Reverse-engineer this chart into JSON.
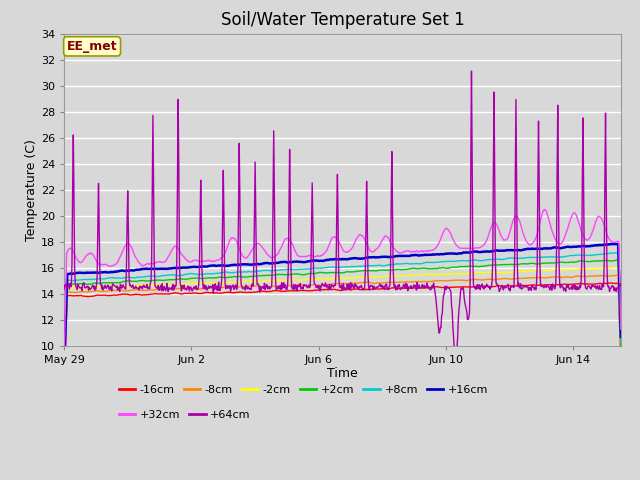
{
  "title": "Soil/Water Temperature Set 1",
  "xlabel": "Time",
  "ylabel": "Temperature (C)",
  "ylim": [
    10,
    34
  ],
  "yticks": [
    10,
    12,
    14,
    16,
    18,
    20,
    22,
    24,
    26,
    28,
    30,
    32,
    34
  ],
  "background_color": "#d8d8d8",
  "plot_bg_color": "#d8d8d8",
  "grid_color": "#ffffff",
  "annotation_text": "EE_met",
  "annotation_bg": "#ffffcc",
  "annotation_border": "#999900",
  "series_order": [
    "-16cm",
    "-8cm",
    "-2cm",
    "+2cm",
    "+8cm",
    "+16cm",
    "+32cm",
    "+64cm"
  ],
  "series": {
    "-16cm": {
      "color": "#ff0000",
      "base": 13.8,
      "trend": 1.0
    },
    "-8cm": {
      "color": "#ff8800",
      "base": 14.1,
      "trend": 1.3
    },
    "-2cm": {
      "color": "#ffff00",
      "base": 14.4,
      "trend": 1.6
    },
    "+2cm": {
      "color": "#00cc00",
      "base": 14.7,
      "trend": 1.9
    },
    "+8cm": {
      "color": "#00cccc",
      "base": 15.0,
      "trend": 2.1
    },
    "+16cm": {
      "color": "#0000cc",
      "base": 15.5,
      "trend": 2.3
    },
    "+32cm": {
      "color": "#ff44ff",
      "base": 16.0,
      "trend": 2.0
    },
    "+64cm": {
      "color": "#aa00aa",
      "base": 14.5,
      "trend": 0.0
    }
  },
  "legend_row1": [
    "-16cm",
    "-8cm",
    "-2cm",
    "+2cm",
    "+8cm",
    "+16cm"
  ],
  "legend_row2": [
    "+32cm",
    "+64cm"
  ],
  "xtick_labels": [
    "May 29",
    "Jun 2",
    "Jun 6",
    "Jun 10",
    "Jun 14"
  ],
  "xtick_positions": [
    0,
    4,
    8,
    12,
    16
  ],
  "num_days": 17.5,
  "points_per_day": 48
}
